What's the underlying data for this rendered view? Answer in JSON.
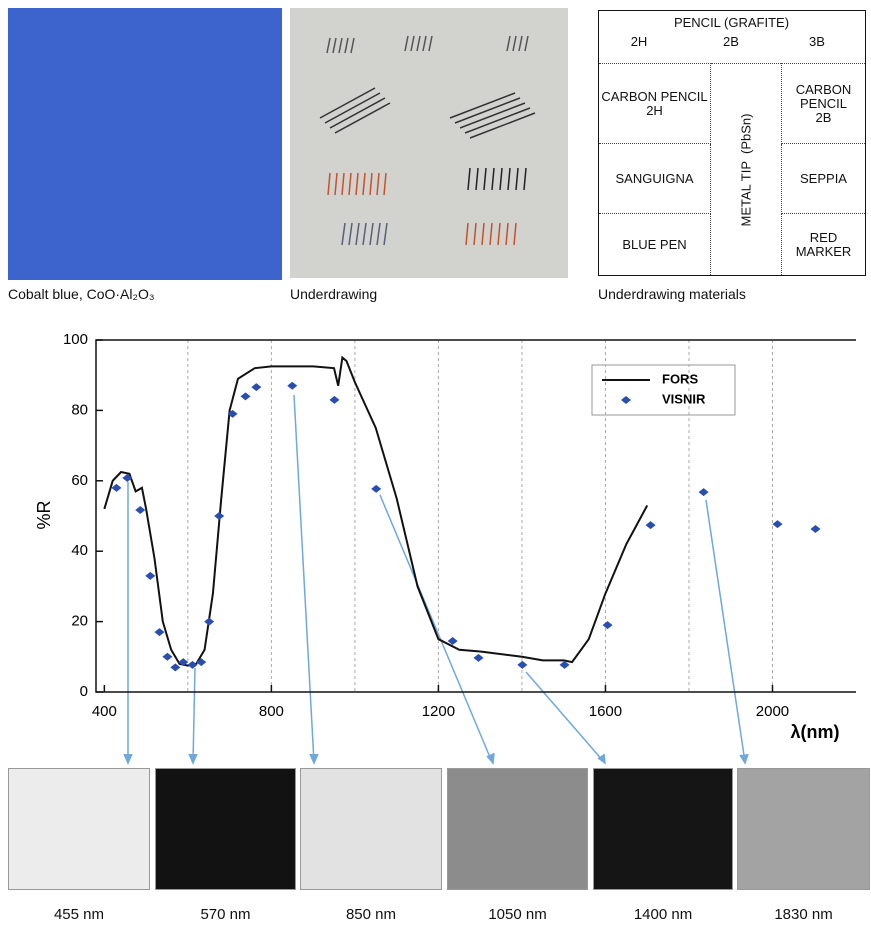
{
  "panels": {
    "cobalt_caption": "Cobalt blue, CoO·Al₂O₃",
    "underdrawing_caption": "Underdrawing",
    "materials_caption": "Underdrawing materials"
  },
  "table": {
    "header": "PENCIL (GRAFITE)",
    "header_grades": [
      "2H",
      "2B",
      "3B"
    ],
    "left": [
      "CARBON PENCIL 2H",
      "SANGUIGNA",
      "BLUE PEN"
    ],
    "middle": "METAL TIP  (PbSn)",
    "right": [
      "CARBON PENCIL 2B",
      "SEPPIA",
      "RED MARKER"
    ]
  },
  "images": {
    "captions": [
      "455 nm",
      "570 nm",
      "850 nm",
      "1050 nm",
      "1400 nm",
      "1830 nm"
    ],
    "tones": [
      "#ececec",
      "#121212",
      "#e2e2e2",
      "#8c8c8c",
      "#151515",
      "#a3a3a3"
    ]
  },
  "chart_data": {
    "type": "line",
    "x_label": "λ(nm)",
    "y_label": "%R",
    "xlim": [
      380,
      2200
    ],
    "ylim": [
      0,
      100
    ],
    "xticks": [
      400,
      800,
      1200,
      1600,
      2000
    ],
    "yticks": [
      0,
      20,
      40,
      60,
      80,
      100
    ],
    "xgrid": [
      600,
      800,
      1000,
      1200,
      1400,
      1600,
      1800,
      2000
    ],
    "legend": "top-right",
    "series": [
      {
        "name": "FORS",
        "color": "#111111",
        "style": "line",
        "x": [
          400,
          420,
          440,
          460,
          475,
          490,
          500,
          520,
          540,
          560,
          580,
          600,
          620,
          640,
          660,
          680,
          700,
          720,
          760,
          800,
          900,
          950,
          960,
          970,
          980,
          1000,
          1050,
          1100,
          1150,
          1200,
          1250,
          1300,
          1400,
          1450,
          1500,
          1520,
          1560,
          1600,
          1650,
          1700
        ],
        "values": [
          52,
          60,
          62.5,
          62,
          57,
          58,
          52,
          38,
          20,
          12,
          8,
          7.5,
          8,
          12,
          28,
          55,
          80,
          89,
          92,
          92.5,
          92.5,
          92,
          87,
          95,
          94,
          88,
          75,
          55,
          30,
          15,
          12,
          11.5,
          10,
          9,
          9,
          8.5,
          15,
          28,
          42,
          53
        ]
      },
      {
        "name": "VISNIR",
        "color": "#2a4db0",
        "style": "marker",
        "x": [
          429,
          455,
          486,
          510,
          532,
          551,
          570,
          589,
          611,
          632,
          651,
          675,
          707,
          738,
          764,
          850,
          951,
          1051,
          1234,
          1296,
          1401,
          1502,
          1605,
          1708,
          1835,
          2012,
          2103
        ],
        "values": [
          58,
          60.8,
          51.7,
          33,
          17,
          10,
          7,
          8.5,
          7.7,
          8.5,
          20,
          50,
          79,
          84,
          86.6,
          87,
          83,
          57.7,
          14.5,
          9.7,
          7.7,
          7.7,
          19,
          47.4,
          56.8,
          47.7,
          46.3
        ]
      }
    ]
  }
}
